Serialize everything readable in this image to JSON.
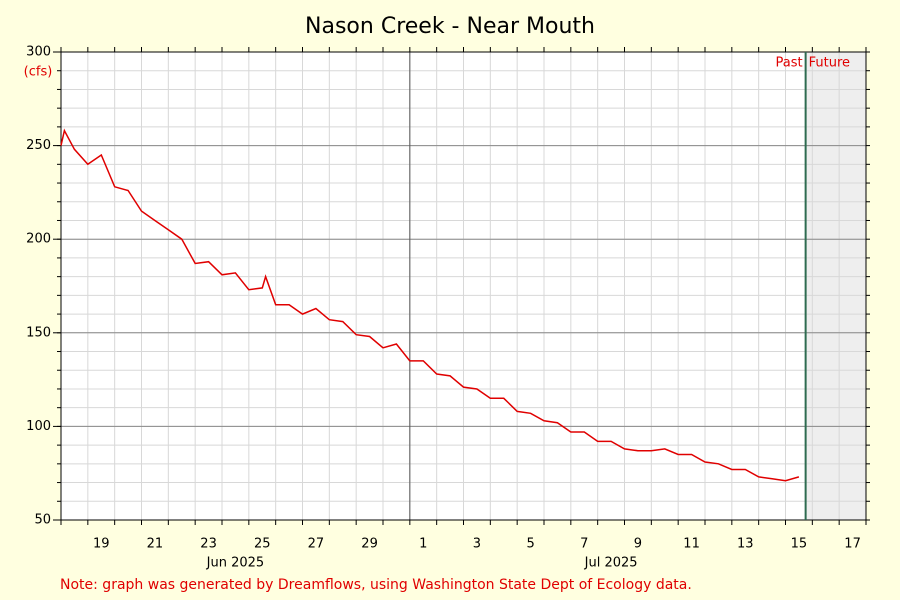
{
  "chart_data": {
    "type": "line",
    "title": "Nason Creek - Near Mouth",
    "y_label": "(cfs)",
    "note": "Note: graph was generated by Dreamflows, using Washington State Dept of Ecology data.",
    "past_label": "Past",
    "future_label": "Future",
    "now": "2025-07-15T18:00",
    "now_color": "#2e6b50",
    "month_line": "2025-07-01T00:00",
    "month_labels": [
      {
        "value": "2025-06-24T12:00",
        "label": "Jun 2025"
      },
      {
        "value": "2025-07-08T12:00",
        "label": "Jul 2025"
      }
    ],
    "xlim": [
      "2025-06-18T00:00",
      "2025-07-18T00:00"
    ],
    "xticks": [
      {
        "value": "2025-06-19T12:00",
        "label": "19"
      },
      {
        "value": "2025-06-21T12:00",
        "label": "21"
      },
      {
        "value": "2025-06-23T12:00",
        "label": "23"
      },
      {
        "value": "2025-06-25T12:00",
        "label": "25"
      },
      {
        "value": "2025-06-27T12:00",
        "label": "27"
      },
      {
        "value": "2025-06-29T12:00",
        "label": "29"
      },
      {
        "value": "2025-07-01T12:00",
        "label": "1"
      },
      {
        "value": "2025-07-03T12:00",
        "label": "3"
      },
      {
        "value": "2025-07-05T12:00",
        "label": "5"
      },
      {
        "value": "2025-07-07T12:00",
        "label": "7"
      },
      {
        "value": "2025-07-09T12:00",
        "label": "9"
      },
      {
        "value": "2025-07-11T12:00",
        "label": "11"
      },
      {
        "value": "2025-07-13T12:00",
        "label": "13"
      },
      {
        "value": "2025-07-15T12:00",
        "label": "15"
      },
      {
        "value": "2025-07-17T12:00",
        "label": "17"
      }
    ],
    "ylim": [
      50,
      300
    ],
    "yticks": [
      50,
      100,
      150,
      200,
      250,
      300
    ],
    "grid": true,
    "x": [
      "2025-06-18T00:00",
      "2025-06-18T03:00",
      "2025-06-18T12:00",
      "2025-06-19T00:00",
      "2025-06-19T12:00",
      "2025-06-20T00:00",
      "2025-06-20T12:00",
      "2025-06-21T00:00",
      "2025-06-21T12:00",
      "2025-06-22T00:00",
      "2025-06-22T12:00",
      "2025-06-23T00:00",
      "2025-06-23T12:00",
      "2025-06-24T00:00",
      "2025-06-24T12:00",
      "2025-06-25T00:00",
      "2025-06-25T12:00",
      "2025-06-25T15:00",
      "2025-06-26T00:00",
      "2025-06-26T12:00",
      "2025-06-27T00:00",
      "2025-06-27T12:00",
      "2025-06-28T00:00",
      "2025-06-28T12:00",
      "2025-06-29T00:00",
      "2025-06-29T12:00",
      "2025-06-30T00:00",
      "2025-06-30T12:00",
      "2025-07-01T00:00",
      "2025-07-01T12:00",
      "2025-07-02T00:00",
      "2025-07-02T12:00",
      "2025-07-03T00:00",
      "2025-07-03T12:00",
      "2025-07-04T00:00",
      "2025-07-04T12:00",
      "2025-07-05T00:00",
      "2025-07-05T12:00",
      "2025-07-06T00:00",
      "2025-07-06T12:00",
      "2025-07-07T00:00",
      "2025-07-07T12:00",
      "2025-07-08T00:00",
      "2025-07-08T12:00",
      "2025-07-09T00:00",
      "2025-07-09T12:00",
      "2025-07-10T00:00",
      "2025-07-10T12:00",
      "2025-07-11T00:00",
      "2025-07-11T12:00",
      "2025-07-12T00:00",
      "2025-07-12T12:00",
      "2025-07-13T00:00",
      "2025-07-13T12:00",
      "2025-07-14T00:00",
      "2025-07-14T12:00",
      "2025-07-15T00:00",
      "2025-07-15T12:00"
    ],
    "series": [
      {
        "name": "Flow",
        "color": "#e00000",
        "values": [
          250,
          258,
          248,
          240,
          245,
          228,
          226,
          215,
          210,
          205,
          200,
          187,
          188,
          181,
          182,
          173,
          174,
          180,
          165,
          165,
          160,
          163,
          157,
          156,
          149,
          148,
          142,
          144,
          135,
          135,
          128,
          127,
          121,
          120,
          115,
          115,
          108,
          107,
          103,
          102,
          97,
          97,
          92,
          92,
          88,
          87,
          87,
          88,
          85,
          85,
          81,
          80,
          77,
          77,
          73,
          72,
          71,
          73
        ]
      }
    ]
  }
}
